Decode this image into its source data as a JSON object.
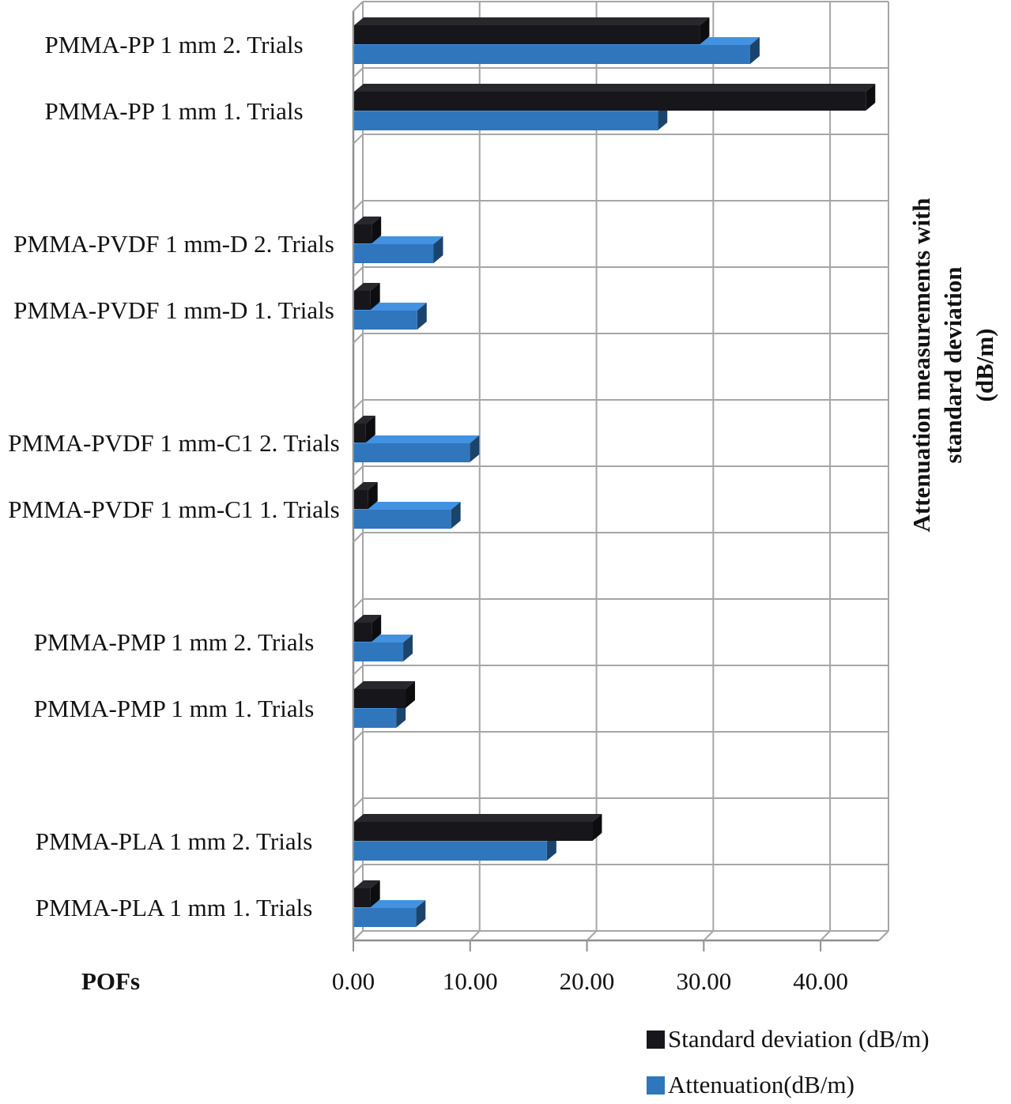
{
  "figure": {
    "x_axis_title": "POFs",
    "y_axis_title": "Attenuation measurements with\nstandard deviation\n(dB/m)"
  },
  "legend": {
    "position": "bottom-right",
    "items": [
      {
        "label": "Standard deviation (dB/m)",
        "color": "#17171b"
      },
      {
        "label": "Attenuation(dB/m)",
        "color": "#2f76bc"
      }
    ]
  },
  "chart_data": {
    "type": "bar",
    "orientation": "horizontal",
    "style": "3d",
    "categories_order": "top-to-bottom",
    "categories": [
      "PMMA-PP 1 mm 2. Trials",
      "PMMA-PP 1 mm 1. Trials",
      "PMMA-PVDF 1 mm-D 2. Trials",
      "PMMA-PVDF 1 mm-D 1. Trials",
      "PMMA-PVDF 1 mm-C1 2. Trials",
      "PMMA-PVDF 1 mm-C1 1. Trials",
      "PMMA-PMP 1 mm 2. Trials",
      "PMMA-PMP 1 mm 1. Trials",
      "PMMA-PLA 1 mm 2. Trials",
      "PMMA-PLA 1 mm 1. Trials"
    ],
    "series": [
      {
        "name": "Standard deviation (dB/m)",
        "color": "#17171b",
        "values": [
          29.6,
          43.8,
          1.5,
          1.4,
          1.0,
          1.2,
          1.5,
          4.4,
          20.4,
          1.4
        ]
      },
      {
        "name": "Attenuation(dB/m)",
        "color": "#2f76bc",
        "values": [
          33.9,
          26.0,
          6.8,
          5.4,
          9.9,
          8.3,
          4.2,
          3.6,
          16.5,
          5.3
        ]
      }
    ],
    "xlabel": "POFs",
    "ylabel": "Attenuation measurements with standard deviation (dB/m)",
    "x_ticks": [
      "0.00",
      "10.00",
      "20.00",
      "30.00",
      "40.00"
    ],
    "x_tick_values": [
      0,
      10,
      20,
      30,
      40
    ],
    "xlim": [
      0,
      45
    ],
    "grid": true,
    "grid_color": "#a6a6a6",
    "frame_color": "#8f8f8f",
    "group_size": 2,
    "legend_position": "bottom-right"
  }
}
